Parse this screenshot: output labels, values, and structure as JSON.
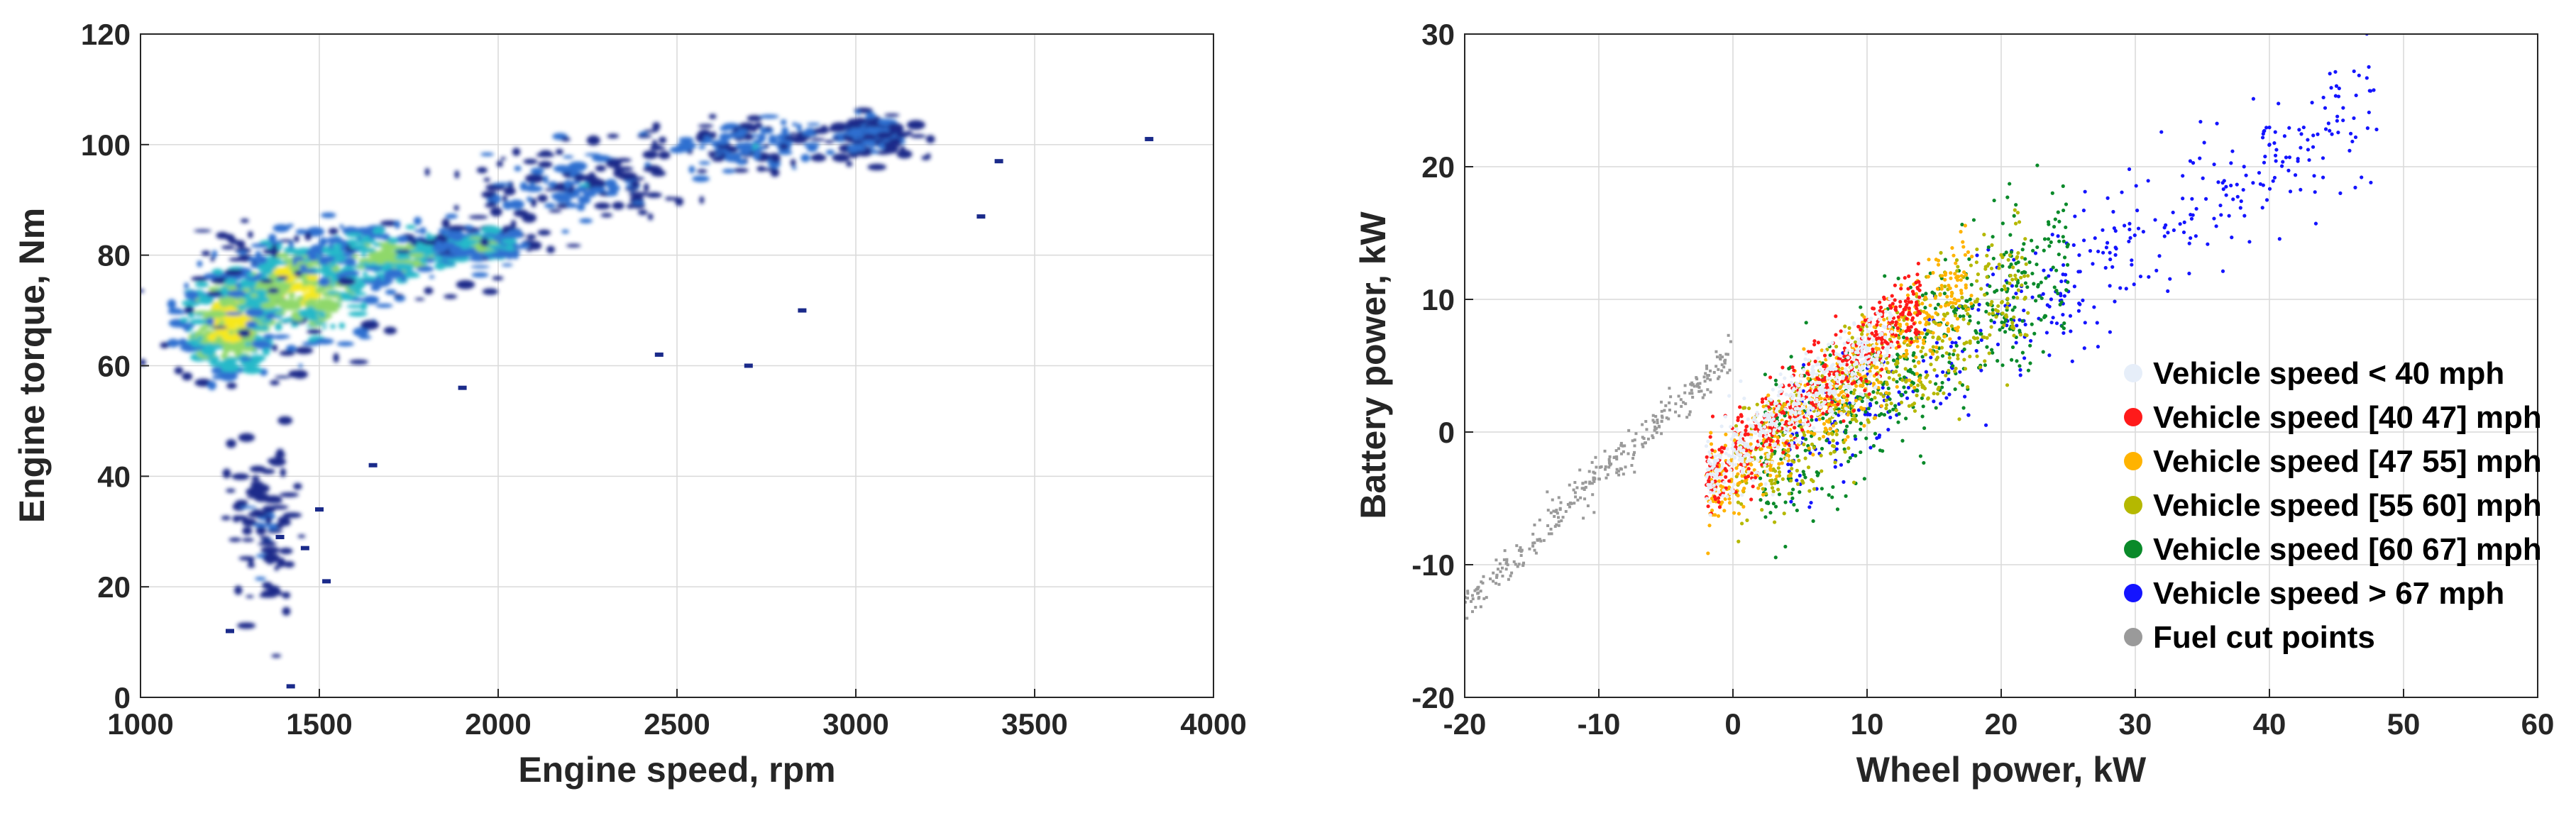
{
  "chart_data": [
    {
      "type": "heatmap",
      "xlabel": "Engine speed, rpm",
      "ylabel": "Engine torque, Nm",
      "xlim": [
        1000,
        4000
      ],
      "ylim": [
        0,
        120
      ],
      "xticks": [
        "1000",
        "1500",
        "2000",
        "2500",
        "3000",
        "3500",
        "4000"
      ],
      "yticks": [
        "0",
        "20",
        "40",
        "60",
        "80",
        "100",
        "120"
      ],
      "grid": true,
      "colormap": [
        "#1a2a8a",
        "#2f6fd0",
        "#27b9c9",
        "#8fd86a",
        "#f6e81b"
      ],
      "clusters": [
        {
          "rpm": 1250,
          "torque": 68,
          "spread_rpm": 120,
          "spread_torque": 8,
          "density": 1.0
        },
        {
          "rpm": 1450,
          "torque": 74,
          "spread_rpm": 200,
          "spread_torque": 8,
          "density": 0.9
        },
        {
          "rpm": 1700,
          "torque": 80,
          "spread_rpm": 250,
          "spread_torque": 5,
          "density": 0.7
        },
        {
          "rpm": 1950,
          "torque": 82,
          "spread_rpm": 120,
          "spread_torque": 2,
          "density": 0.6
        },
        {
          "rpm": 2200,
          "torque": 92,
          "spread_rpm": 250,
          "spread_torque": 6,
          "density": 0.3
        },
        {
          "rpm": 2700,
          "torque": 100,
          "spread_rpm": 250,
          "spread_torque": 4,
          "density": 0.3
        },
        {
          "rpm": 3050,
          "torque": 102,
          "spread_rpm": 80,
          "spread_torque": 3,
          "density": 0.3
        },
        {
          "rpm": 1350,
          "torque": 30,
          "spread_rpm": 80,
          "spread_torque": 12,
          "density": 0.1
        }
      ]
    },
    {
      "type": "scatter",
      "xlabel": "Wheel power, kW",
      "ylabel": "Battery power, kW",
      "xlim": [
        -20,
        60
      ],
      "ylim": [
        -20,
        30
      ],
      "xticks": [
        "-20",
        "-10",
        "0",
        "10",
        "20",
        "30",
        "40",
        "50",
        "60"
      ],
      "yticks": [
        "-20",
        "-10",
        "0",
        "10",
        "20",
        "30"
      ],
      "grid": true,
      "legend_position": "right",
      "series": [
        {
          "name": "Vehicle speed < 40 mph",
          "color": "#e6eef9",
          "x_range": [
            -2,
            12
          ],
          "slope": 0.8,
          "intercept": -2,
          "noise": 1.5
        },
        {
          "name": "Vehicle speed [40 47] mph",
          "color": "#ff1a1a",
          "x_range": [
            -2,
            14
          ],
          "slope": 0.85,
          "intercept": -2,
          "noise": 1.5
        },
        {
          "name": "Vehicle speed [47 55] mph",
          "color": "#ffb300",
          "x_range": [
            -2,
            18
          ],
          "slope": 0.8,
          "intercept": -3,
          "noise": 1.8
        },
        {
          "name": "Vehicle speed [55 60] mph",
          "color": "#b5b800",
          "x_range": [
            0,
            22
          ],
          "slope": 0.7,
          "intercept": -3.5,
          "noise": 2.5
        },
        {
          "name": "Vehicle speed [60 67] mph",
          "color": "#0a8a2a",
          "x_range": [
            2,
            25
          ],
          "slope": 0.7,
          "intercept": -4,
          "noise": 3
        },
        {
          "name": "Vehicle speed > 67 mph",
          "color": "#1414ff",
          "x_range": [
            4,
            48
          ],
          "slope": 0.6,
          "intercept": -4,
          "noise": 2.5
        },
        {
          "name": "Fuel cut points",
          "color": "#9a9a9a",
          "x_range": [
            -20,
            0
          ],
          "slope": 0.95,
          "intercept": 6,
          "noise": 0.8
        }
      ]
    }
  ]
}
